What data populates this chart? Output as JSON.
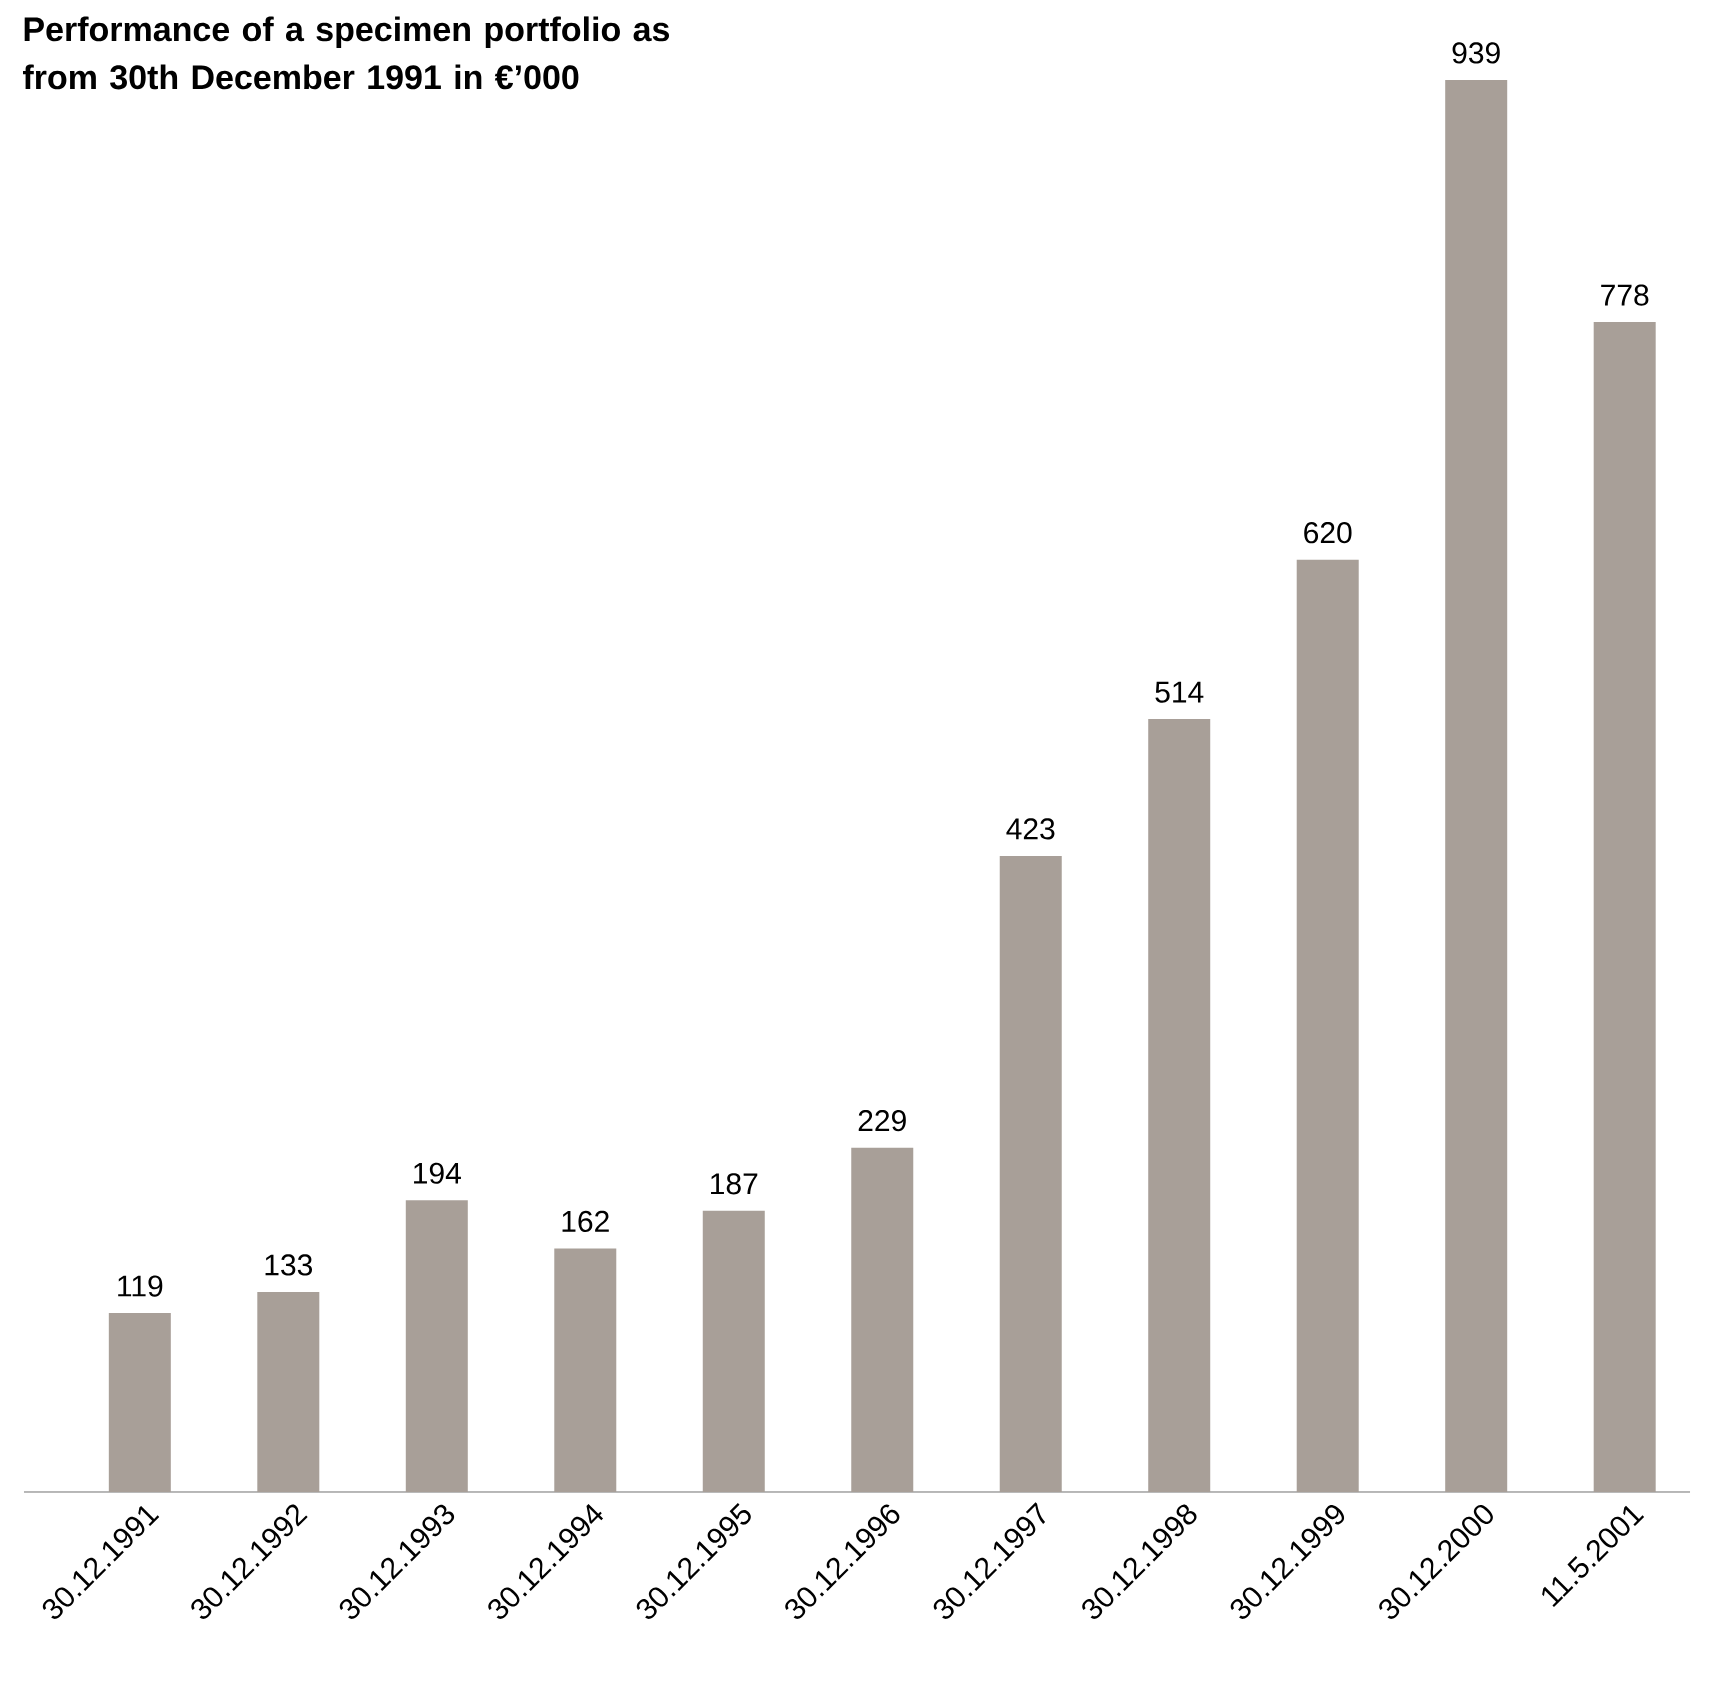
{
  "chart_data": {
    "type": "bar",
    "title": "Performance of a specimen portfolio as from 30th December 1991 in €’000",
    "categories": [
      "30.12.1991",
      "30.12.1992",
      "30.12.1993",
      "30.12.1994",
      "30.12.1995",
      "30.12.1996",
      "30.12.1997",
      "30.12.1998",
      "30.12.1999",
      "30.12.2000",
      "11.5.2001"
    ],
    "values": [
      119,
      133,
      194,
      162,
      187,
      229,
      423,
      514,
      620,
      939,
      778
    ],
    "color": "#a89f98",
    "data_labels": true
  }
}
